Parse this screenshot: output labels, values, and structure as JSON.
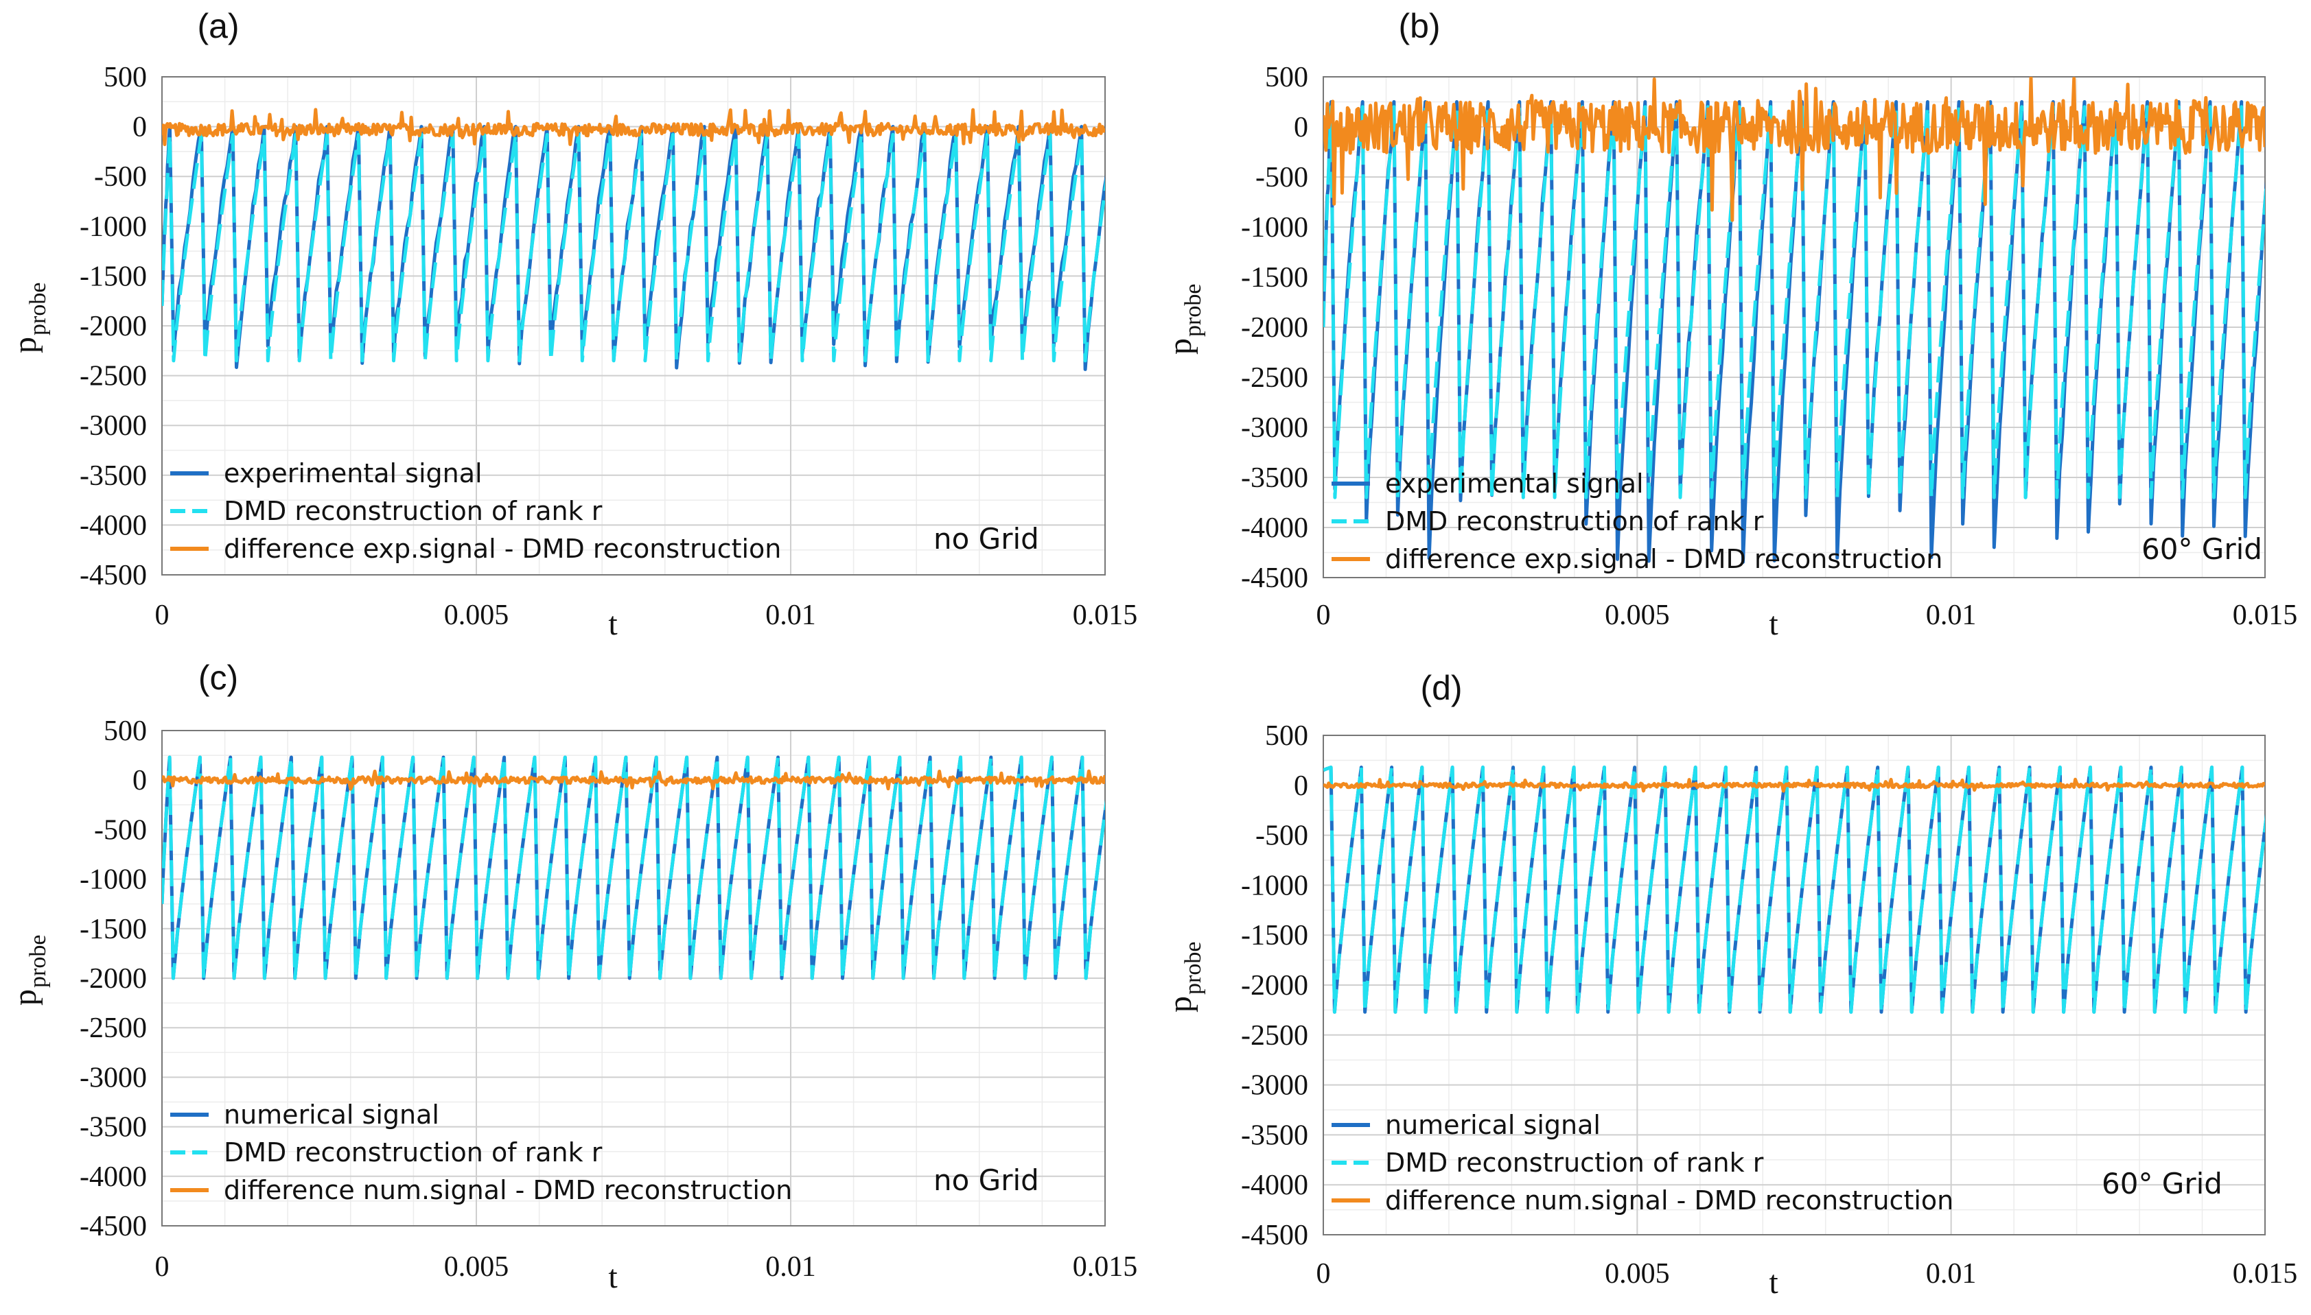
{
  "chart_data": [
    {
      "type": "line",
      "panel": "(a)",
      "xlabel": "t",
      "ylabel_main": "p",
      "ylabel_sub": "probe",
      "xlim": [
        0,
        0.015
      ],
      "ylim": [
        -4500,
        500
      ],
      "xticks": [
        0,
        0.005,
        0.01,
        0.015
      ],
      "xtick_labels": [
        "0",
        "0.005",
        "0.01",
        "0.015"
      ],
      "yticks": [
        500,
        0,
        -500,
        -1000,
        -1500,
        -2000,
        -2500,
        -3000,
        -3500,
        -4000,
        -4500
      ],
      "ytick_labels": [
        "500",
        "0",
        "-500",
        "-1000",
        "-1500",
        "-2000",
        "-2500",
        "-3000",
        "-3500",
        "-4000",
        "-4500"
      ],
      "grid": true,
      "annotation": "no Grid",
      "legend": [
        "experimental signal",
        "DMD reconstruction of rank r",
        "difference exp.signal - DMD reconstruction"
      ],
      "legend_position": "bottom-left",
      "series_summary": {
        "signal": {
          "name": "experimental signal",
          "cycles": 30,
          "peak": 0,
          "trough_range": [
            -2450,
            -2150
          ],
          "start": -1800,
          "end": -1000
        },
        "reconstruction": {
          "name": "DMD reconstruction of rank r",
          "peak": -80,
          "trough": -2350
        },
        "difference": {
          "name": "difference exp.signal - DMD reconstruction",
          "mean": -30,
          "range": [
            -150,
            200
          ]
        }
      },
      "colors": {
        "signal": "#1f6fc5",
        "reconstruction": "#22e0f0",
        "difference": "#f28a1e"
      }
    },
    {
      "type": "line",
      "panel": "(b)",
      "xlabel": "t",
      "ylabel_main": "p",
      "ylabel_sub": "probe",
      "xlim": [
        0,
        0.015
      ],
      "ylim": [
        -4500,
        500
      ],
      "xticks": [
        0,
        0.005,
        0.01,
        0.015
      ],
      "xtick_labels": [
        "0",
        "0.005",
        "0.01",
        "0.015"
      ],
      "yticks": [
        500,
        0,
        -500,
        -1000,
        -1500,
        -2000,
        -2500,
        -3000,
        -3500,
        -4000,
        -4500
      ],
      "ytick_labels": [
        "500",
        "0",
        "-500",
        "-1000",
        "-1500",
        "-2000",
        "-2500",
        "-3000",
        "-3500",
        "-4000",
        "-4500"
      ],
      "grid": true,
      "annotation": "60° Grid",
      "legend": [
        "experimental signal",
        "DMD reconstruction of rank r",
        "difference exp.signal - DMD reconstruction"
      ],
      "legend_position": "bottom-left",
      "series_summary": {
        "signal": {
          "name": "experimental signal",
          "cycles": 30,
          "peak": 250,
          "trough_range": [
            -4400,
            -3600
          ],
          "start": -2000,
          "end": -3700
        },
        "reconstruction": {
          "name": "DMD reconstruction of rank r",
          "peak": 200,
          "trough": -3700
        },
        "difference": {
          "name": "difference exp.signal - DMD reconstruction",
          "mean": 0,
          "range": [
            -1000,
            500
          ]
        }
      },
      "colors": {
        "signal": "#1f6fc5",
        "reconstruction": "#22e0f0",
        "difference": "#f28a1e"
      }
    },
    {
      "type": "line",
      "panel": "(c)",
      "xlabel": "t",
      "ylabel_main": "p",
      "ylabel_sub": "probe",
      "xlim": [
        0,
        0.015
      ],
      "ylim": [
        -4500,
        500
      ],
      "xticks": [
        0,
        0.005,
        0.01,
        0.015
      ],
      "xtick_labels": [
        "0",
        "0.005",
        "0.01",
        "0.015"
      ],
      "yticks": [
        500,
        0,
        -500,
        -1000,
        -1500,
        -2000,
        -2500,
        -3000,
        -3500,
        -4000,
        -4500
      ],
      "ytick_labels": [
        "500",
        "0",
        "-500",
        "-1000",
        "-1500",
        "-2000",
        "-2500",
        "-3000",
        "-3500",
        "-4000",
        "-4500"
      ],
      "grid": true,
      "annotation": "no Grid",
      "legend": [
        "numerical signal",
        "DMD reconstruction of rank r",
        "difference num.signal - DMD reconstruction"
      ],
      "legend_position": "bottom-left",
      "series_summary": {
        "signal": {
          "name": "numerical signal",
          "cycles": 31,
          "peak": 230,
          "trough": -2000,
          "start": -1250,
          "end": -2000
        },
        "reconstruction": {
          "name": "DMD reconstruction of rank r",
          "peak": 230,
          "trough": -2000
        },
        "difference": {
          "name": "difference num.signal - DMD reconstruction",
          "mean": 0,
          "range": [
            -90,
            90
          ]
        }
      },
      "colors": {
        "signal": "#1f6fc5",
        "reconstruction": "#22e0f0",
        "difference": "#f28a1e"
      }
    },
    {
      "type": "line",
      "panel": "(d)",
      "xlabel": "t",
      "ylabel_main": "p",
      "ylabel_sub": "probe",
      "xlim": [
        0,
        0.015
      ],
      "ylim": [
        -4500,
        500
      ],
      "xticks": [
        0,
        0.005,
        0.01,
        0.015
      ],
      "xtick_labels": [
        "0",
        "0.005",
        "0.01",
        "0.015"
      ],
      "yticks": [
        500,
        0,
        -500,
        -1000,
        -1500,
        -2000,
        -2500,
        -3000,
        -3500,
        -4000,
        -4500
      ],
      "ytick_labels": [
        "500",
        "0",
        "-500",
        "-1000",
        "-1500",
        "-2000",
        "-2500",
        "-3000",
        "-3500",
        "-4000",
        "-4500"
      ],
      "grid": true,
      "annotation": "60° Grid",
      "legend": [
        "numerical signal",
        "DMD reconstruction of rank r",
        "difference num.signal - DMD reconstruction"
      ],
      "legend_position": "bottom-left",
      "series_summary": {
        "signal": {
          "name": "numerical signal",
          "cycles": 31,
          "peak": 180,
          "trough": -2270,
          "start": 150,
          "end": -800
        },
        "reconstruction": {
          "name": "DMD reconstruction of rank r",
          "peak": 180,
          "trough": -2270
        },
        "difference": {
          "name": "difference num.signal - DMD reconstruction",
          "mean": 0,
          "range": [
            -60,
            60
          ]
        }
      },
      "colors": {
        "signal": "#1f6fc5",
        "reconstruction": "#22e0f0",
        "difference": "#f28a1e"
      }
    }
  ]
}
